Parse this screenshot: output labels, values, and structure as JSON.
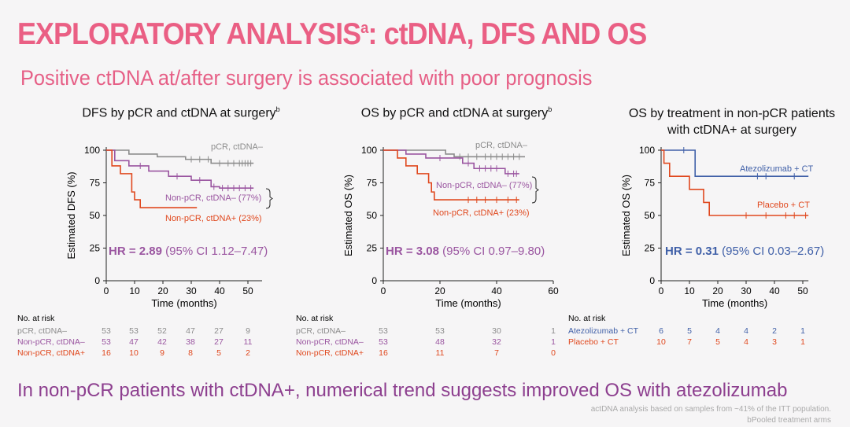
{
  "title": "EXPLORATORY ANALYSIS",
  "title_sup": "a",
  "title_rest": ": ctDNA, DFS AND OS",
  "subtitle": "Positive ctDNA at/after surgery is associated with poor prognosis",
  "bottom_text": "In non-pCR patients with ctDNA+, numerical trend suggests improved OS with atezolizumab",
  "footnotes": [
    "actDNA analysis based on samples from ~41% of the ITT population.",
    "bPooled treatment arms"
  ],
  "colors": {
    "gray": "#8c8c8c",
    "purple": "#9a55a0",
    "red": "#e0481e",
    "blue": "#4060a8",
    "title": "#ea5f84"
  },
  "chart_data": [
    {
      "type": "line",
      "title": "DFS by pCR and ctDNA at surgery",
      "title_sup": "b",
      "ylabel": "Estimated DFS (%)",
      "xlabel": "Time (months)",
      "xlim": [
        0,
        55
      ],
      "ylim": [
        0,
        100
      ],
      "xticks": [
        0,
        10,
        20,
        30,
        40,
        50
      ],
      "yticks": [
        0,
        25,
        50,
        75,
        100
      ],
      "hr": {
        "label": "HR = 2.89",
        "ci": " (95% CI 1.12–7.47)",
        "color": "purple"
      },
      "series": [
        {
          "name": "pCR, ctDNA–",
          "color": "gray",
          "points": [
            [
              0,
              100
            ],
            [
              8,
              100
            ],
            [
              8,
              97
            ],
            [
              18,
              97
            ],
            [
              18,
              95
            ],
            [
              28,
              95
            ],
            [
              28,
              93
            ],
            [
              37,
              93
            ],
            [
              37,
              90
            ],
            [
              52,
              90
            ]
          ],
          "censors": [
            30,
            33,
            36,
            40,
            43,
            45,
            47,
            48,
            49,
            50,
            51
          ]
        },
        {
          "name": "Non-pCR, ctDNA– (77%)",
          "color": "purple",
          "points": [
            [
              0,
              100
            ],
            [
              3,
              100
            ],
            [
              3,
              92
            ],
            [
              8,
              92
            ],
            [
              8,
              88
            ],
            [
              15,
              88
            ],
            [
              15,
              84
            ],
            [
              22,
              84
            ],
            [
              22,
              80
            ],
            [
              30,
              80
            ],
            [
              30,
              77
            ],
            [
              37,
              77
            ],
            [
              37,
              72
            ],
            [
              40,
              72
            ],
            [
              40,
              71
            ],
            [
              52,
              71
            ]
          ],
          "censors": [
            12,
            25,
            33,
            38,
            41,
            43,
            45,
            47,
            49,
            51
          ]
        },
        {
          "name": "Non-pCR, ctDNA+ (23%)",
          "color": "red",
          "points": [
            [
              0,
              100
            ],
            [
              2,
              100
            ],
            [
              2,
              88
            ],
            [
              5,
              88
            ],
            [
              5,
              82
            ],
            [
              9,
              82
            ],
            [
              9,
              68
            ],
            [
              10,
              68
            ],
            [
              10,
              62
            ],
            [
              12,
              62
            ],
            [
              12,
              56
            ],
            [
              32,
              56
            ]
          ],
          "censors": []
        }
      ],
      "risk": {
        "header": "No. at risk",
        "rows": [
          {
            "label": "pCR, ctDNA–",
            "color": "gray",
            "values": [
              53,
              53,
              52,
              47,
              27,
              9
            ]
          },
          {
            "label": "Non-pCR, ctDNA–",
            "color": "purple",
            "values": [
              53,
              47,
              42,
              38,
              27,
              11
            ]
          },
          {
            "label": "Non-pCR, ctDNA+",
            "color": "red",
            "values": [
              16,
              10,
              9,
              8,
              5,
              2
            ]
          }
        ]
      }
    },
    {
      "type": "line",
      "title": "OS by pCR and ctDNA at surgery",
      "title_sup": "b",
      "ylabel": "Estimated OS (%)",
      "xlabel": "Time (months)",
      "xlim": [
        0,
        60
      ],
      "ylim": [
        0,
        100
      ],
      "xticks": [
        0,
        20,
        40,
        60
      ],
      "yticks": [
        0,
        25,
        50,
        75,
        100
      ],
      "hr": {
        "label": "HR = 3.08",
        "ci": " (95% CI 0.97–9.80)",
        "color": "purple"
      },
      "series": [
        {
          "name": "pCR, ctDNA–",
          "color": "gray",
          "points": [
            [
              0,
              100
            ],
            [
              22,
              100
            ],
            [
              22,
              97
            ],
            [
              25,
              97
            ],
            [
              25,
              95
            ],
            [
              50,
              95
            ]
          ],
          "censors": [
            27,
            30,
            33,
            36,
            38,
            40,
            42,
            44,
            46,
            48
          ]
        },
        {
          "name": "Non-pCR, ctDNA– (77%)",
          "color": "purple",
          "points": [
            [
              0,
              100
            ],
            [
              8,
              100
            ],
            [
              8,
              97
            ],
            [
              15,
              97
            ],
            [
              15,
              94
            ],
            [
              28,
              94
            ],
            [
              28,
              90
            ],
            [
              32,
              90
            ],
            [
              32,
              86
            ],
            [
              43,
              86
            ],
            [
              43,
              82
            ],
            [
              48,
              82
            ]
          ],
          "censors": [
            20,
            30,
            34,
            36,
            38,
            40,
            44,
            46,
            47
          ]
        },
        {
          "name": "Non-pCR, ctDNA+ (23%)",
          "color": "red",
          "points": [
            [
              0,
              100
            ],
            [
              5,
              100
            ],
            [
              5,
              94
            ],
            [
              8,
              94
            ],
            [
              8,
              88
            ],
            [
              12,
              88
            ],
            [
              12,
              82
            ],
            [
              16,
              82
            ],
            [
              16,
              75
            ],
            [
              17,
              75
            ],
            [
              17,
              68
            ],
            [
              18,
              68
            ],
            [
              18,
              62
            ],
            [
              48,
              62
            ]
          ],
          "censors": [
            30,
            33,
            36,
            40,
            44,
            47
          ]
        }
      ],
      "risk": {
        "header": "No. at risk",
        "rows": [
          {
            "label": "pCR, ctDNA–",
            "color": "gray",
            "values": [
              53,
              53,
              30,
              1
            ]
          },
          {
            "label": "Non-pCR, ctDNA–",
            "color": "purple",
            "values": [
              53,
              48,
              32,
              1
            ]
          },
          {
            "label": "Non-pCR, ctDNA+",
            "color": "red",
            "values": [
              16,
              11,
              7,
              0
            ]
          }
        ]
      }
    },
    {
      "type": "line",
      "title": "OS by treatment in non-pCR patients with ctDNA+ at surgery",
      "ylabel": "Estimated OS (%)",
      "xlabel": "Time (months)",
      "xlim": [
        0,
        52
      ],
      "ylim": [
        0,
        100
      ],
      "xticks": [
        0,
        10,
        20,
        30,
        40,
        50
      ],
      "yticks": [
        0,
        25,
        50,
        75,
        100
      ],
      "hr": {
        "label": "HR = 0.31",
        "ci": " (95% CI 0.03–2.67)",
        "color": "blue"
      },
      "series": [
        {
          "name": "Atezolizumab + CT",
          "color": "blue",
          "points": [
            [
              0,
              100
            ],
            [
              12,
              100
            ],
            [
              12,
              80
            ],
            [
              52,
              80
            ]
          ],
          "censors": [
            8,
            34,
            37,
            47
          ]
        },
        {
          "name": "Placebo + CT",
          "color": "red",
          "points": [
            [
              0,
              100
            ],
            [
              1,
              100
            ],
            [
              1,
              90
            ],
            [
              3,
              90
            ],
            [
              3,
              80
            ],
            [
              10,
              80
            ],
            [
              10,
              70
            ],
            [
              15,
              70
            ],
            [
              15,
              60
            ],
            [
              17,
              60
            ],
            [
              17,
              50
            ],
            [
              52,
              50
            ]
          ],
          "censors": [
            30,
            37,
            44,
            47,
            51
          ]
        }
      ],
      "risk": {
        "header": "No. at risk",
        "rows": [
          {
            "label": "Atezolizumab + CT",
            "color": "blue",
            "values": [
              6,
              5,
              4,
              4,
              2,
              1
            ]
          },
          {
            "label": "Placebo + CT",
            "color": "red",
            "values": [
              10,
              7,
              5,
              4,
              3,
              1
            ]
          }
        ]
      }
    }
  ]
}
